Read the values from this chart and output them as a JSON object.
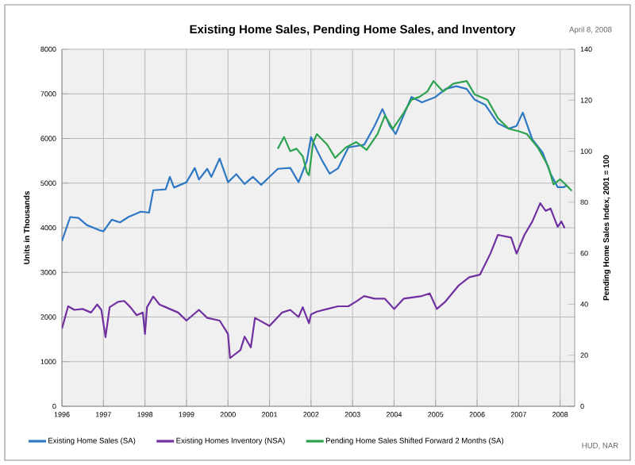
{
  "chart_data": {
    "type": "line",
    "title": "Existing Home Sales, Pending Home Sales, and Inventory",
    "ylabel": "Units in Thousands",
    "y2label": "Pending Home Sales Index, 2001 = 100",
    "annotations": [
      "April 8, 2008",
      "HUD, NAR"
    ],
    "xlim": [
      1996,
      2008.35
    ],
    "xticks": [
      1996,
      1997,
      1998,
      1999,
      2000,
      2001,
      2002,
      2003,
      2004,
      2005,
      2006,
      2007,
      2008
    ],
    "ylim": [
      0,
      8000
    ],
    "yticks": [
      0,
      1000,
      2000,
      3000,
      4000,
      5000,
      6000,
      7000,
      8000
    ],
    "y2lim": [
      0,
      140
    ],
    "y2ticks": [
      0,
      20,
      40,
      60,
      80,
      100,
      120,
      140
    ],
    "grid": true,
    "legend": "bottom",
    "line_style": "solid",
    "marker": "none",
    "series": [
      {
        "name": "Existing Home Sales (SA)",
        "color": "#2f78c4",
        "x": [
          1996.0,
          1996.2,
          1996.4,
          1996.6,
          1996.9,
          1997.0,
          1997.2,
          1997.4,
          1997.6,
          1997.9,
          1998.1,
          1998.2,
          1998.5,
          1998.6,
          1998.7,
          1999.0,
          1999.2,
          1999.3,
          1999.5,
          1999.6,
          1999.8,
          2000.0,
          2000.2,
          2000.4,
          2000.6,
          2000.8,
          2001.0,
          2001.2,
          2001.5,
          2001.7,
          2001.9,
          2002.0,
          2002.14,
          2002.27,
          2002.45,
          2002.65,
          2002.9,
          2003.28,
          2003.53,
          2003.72,
          2003.9,
          2004.04,
          2004.23,
          2004.42,
          2004.67,
          2005.0,
          2005.24,
          2005.5,
          2005.75,
          2005.94,
          2006.2,
          2006.5,
          2006.76,
          2006.95,
          2007.1,
          2007.33,
          2007.58,
          2007.77,
          2007.94,
          2008.09,
          2008.17
        ],
        "values": [
          3700,
          4240,
          4220,
          4060,
          3945,
          3920,
          4180,
          4120,
          4240,
          4360,
          4340,
          4840,
          4860,
          5140,
          4900,
          5020,
          5340,
          5080,
          5320,
          5140,
          5550,
          5020,
          5200,
          4980,
          5140,
          4960,
          5140,
          5320,
          5340,
          5020,
          5500,
          6030,
          5740,
          5500,
          5210,
          5330,
          5800,
          5860,
          6280,
          6660,
          6280,
          6100,
          6520,
          6930,
          6810,
          6930,
          7110,
          7170,
          7110,
          6870,
          6750,
          6340,
          6220,
          6280,
          6580,
          5980,
          5680,
          5210,
          4910,
          4910,
          4950
        ]
      },
      {
        "name": "Existing Homes Inventory (NSA)",
        "color": "#7030a0",
        "x": [
          1996.0,
          1996.15,
          1996.3,
          1996.5,
          1996.7,
          1996.85,
          1996.95,
          1997.05,
          1997.15,
          1997.35,
          1997.5,
          1997.65,
          1997.8,
          1997.95,
          1998.0,
          1998.05,
          1998.2,
          1998.35,
          1998.5,
          1998.8,
          1999.0,
          1999.3,
          1999.5,
          1999.8,
          2000.0,
          2000.05,
          2000.3,
          2000.4,
          2000.55,
          2000.65,
          2001.0,
          2001.3,
          2001.5,
          2001.7,
          2001.8,
          2001.95,
          2002.0,
          2002.14,
          2002.39,
          2002.65,
          2002.9,
          2003.09,
          2003.28,
          2003.53,
          2003.78,
          2004.0,
          2004.23,
          2004.67,
          2004.86,
          2005.03,
          2005.24,
          2005.56,
          2005.81,
          2006.07,
          2006.32,
          2006.5,
          2006.82,
          2006.95,
          2007.14,
          2007.33,
          2007.52,
          2007.65,
          2007.77,
          2007.94,
          2008.03,
          2008.11
        ],
        "values": [
          1740,
          2240,
          2160,
          2180,
          2100,
          2280,
          2160,
          1550,
          2220,
          2340,
          2360,
          2220,
          2040,
          2100,
          1620,
          2220,
          2460,
          2280,
          2220,
          2100,
          1920,
          2160,
          1980,
          1920,
          1620,
          1080,
          1260,
          1560,
          1320,
          1980,
          1800,
          2100,
          2160,
          2000,
          2220,
          1860,
          2060,
          2120,
          2180,
          2240,
          2240,
          2350,
          2470,
          2410,
          2410,
          2180,
          2410,
          2470,
          2530,
          2180,
          2350,
          2710,
          2890,
          2950,
          3420,
          3840,
          3780,
          3420,
          3840,
          4140,
          4550,
          4380,
          4430,
          4020,
          4140,
          3990
        ]
      },
      {
        "name": "Pending Home Sales Shifted Forward 2 Months (SA)",
        "color": "#2ea34f",
        "axis": "y2",
        "x": [
          2001.2,
          2001.35,
          2001.5,
          2001.65,
          2001.8,
          2001.9,
          2001.95,
          2002.05,
          2002.14,
          2002.39,
          2002.58,
          2002.84,
          2003.09,
          2003.34,
          2003.6,
          2003.78,
          2003.97,
          2004.23,
          2004.42,
          2004.61,
          2004.8,
          2004.95,
          2005.18,
          2005.43,
          2005.75,
          2005.94,
          2006.25,
          2006.5,
          2006.76,
          2007.01,
          2007.2,
          2007.46,
          2007.71,
          2007.84,
          2008.0,
          2008.16,
          2008.28
        ],
        "values": [
          101,
          105.6,
          100,
          101,
          98,
          91.7,
          90.6,
          103.4,
          106.7,
          102.6,
          97.4,
          101.5,
          103.6,
          100.5,
          106.7,
          114,
          108.8,
          115,
          120.2,
          121.3,
          123.4,
          127.5,
          123.4,
          126.5,
          127.5,
          122.3,
          120.2,
          113,
          108.8,
          107.8,
          106.7,
          101.5,
          94.2,
          87,
          89,
          86.5,
          84.5
        ]
      }
    ]
  }
}
